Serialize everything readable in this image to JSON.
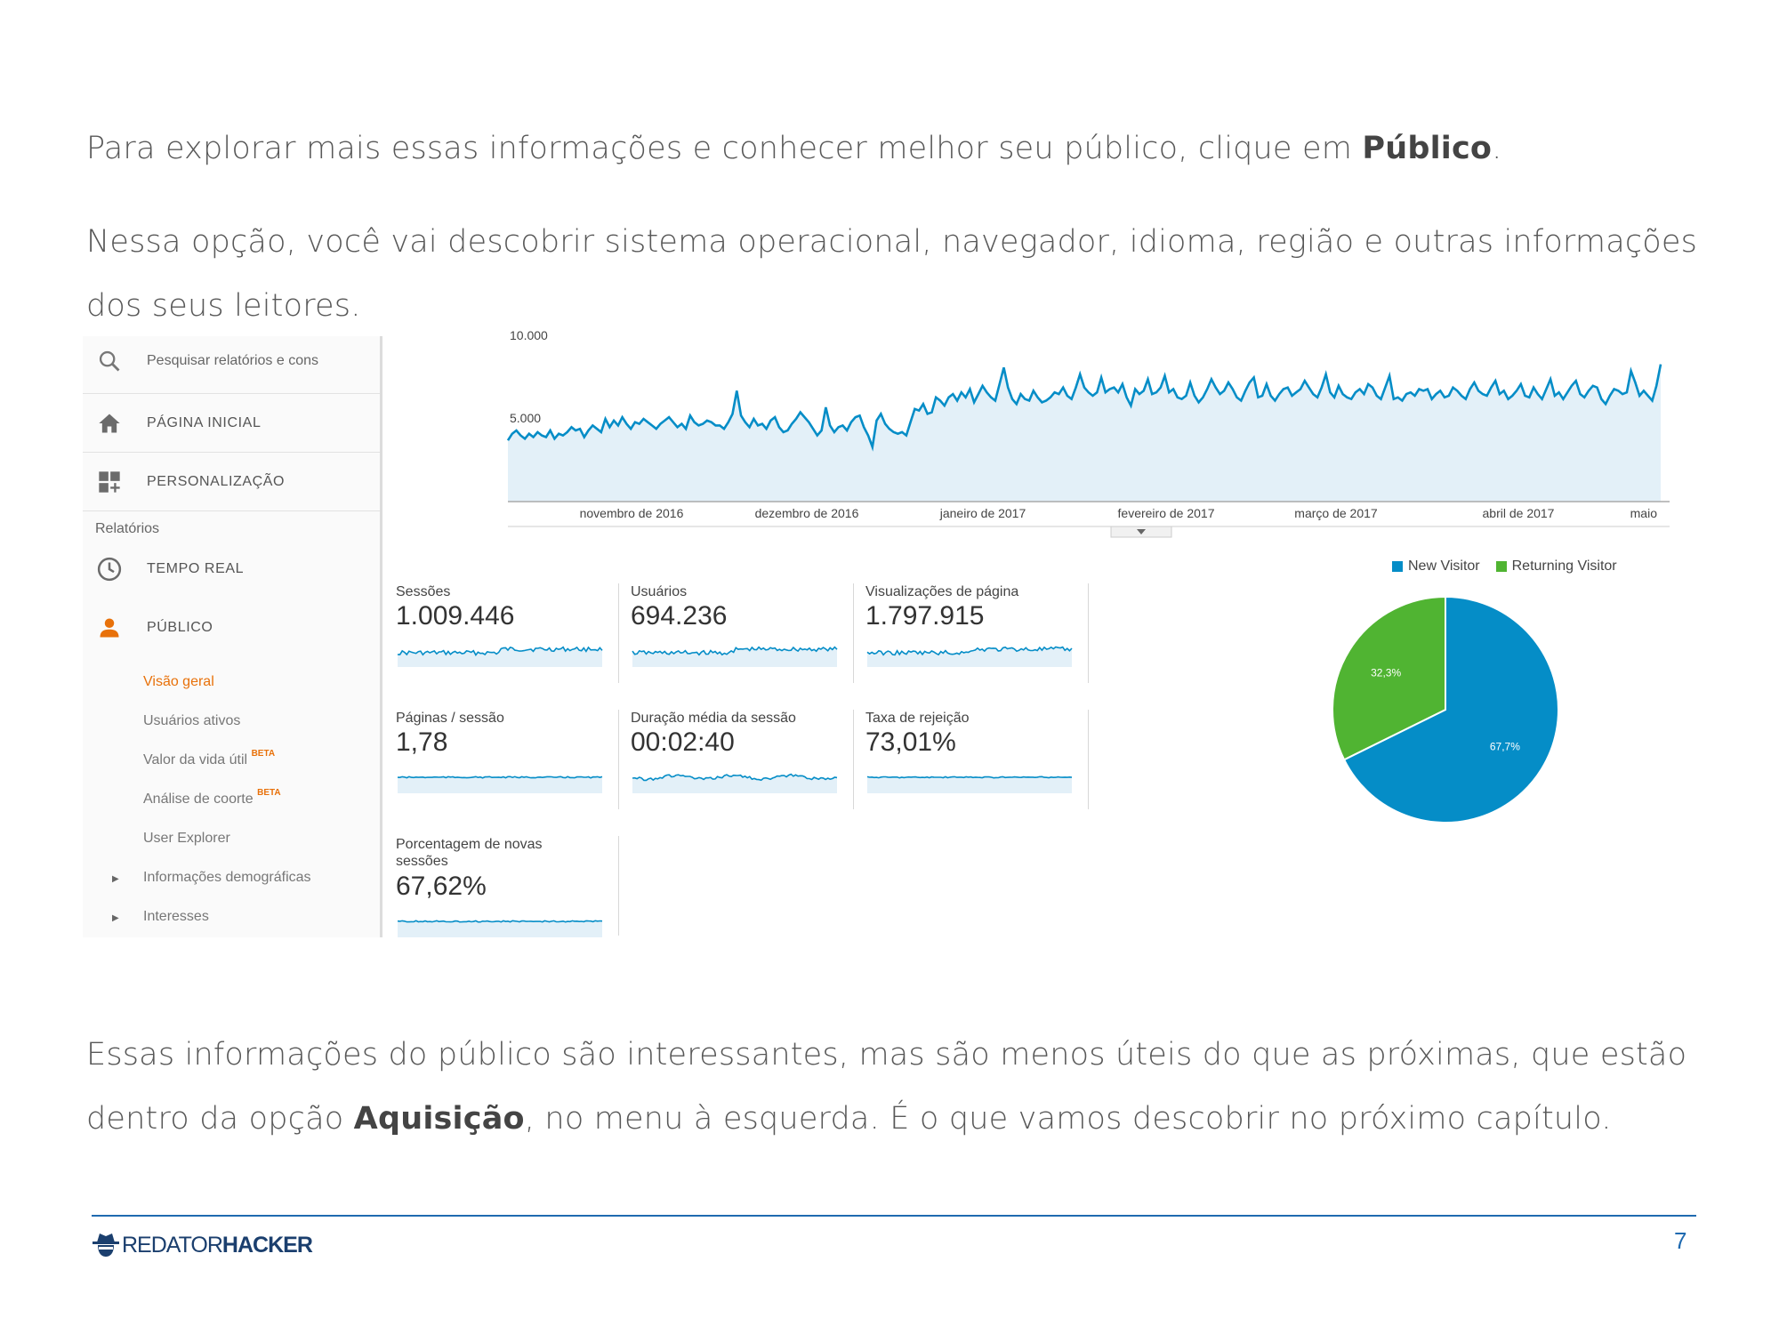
{
  "text": {
    "p1_prefix": "Para explorar mais essas informações e conhecer melhor seu público, clique em ",
    "p1_bold": "Público",
    "p1_suffix": ".",
    "p2": "Nessa opção, você vai descobrir sistema operacional, navegador, idioma, região e outras informações dos seus leitores.",
    "p3_prefix": "Essas informações do público são interessantes, mas são menos úteis do que as próximas, que estão dentro da opção ",
    "p3_bold": "Aquisição",
    "p3_suffix": ", no menu à esquerda. É o que vamos descobrir no próximo capítulo."
  },
  "sidebar": {
    "search_placeholder": "Pesquisar relatórios e cons",
    "home": "PÁGINA INICIAL",
    "custom": "PERSONALIZAÇÃO",
    "reports_heading": "Relatórios",
    "realtime": "TEMPO REAL",
    "audience": "PÚBLICO",
    "sub_items": {
      "overview": "Visão geral",
      "active_users": "Usuários ativos",
      "lifetime_value": "Valor da vida útil",
      "cohort": "Análise de coorte",
      "user_explorer": "User Explorer",
      "demographics": "Informações demográficas",
      "interests": "Interesses"
    },
    "beta": "BETA",
    "accent_color": "#e8710a"
  },
  "chart_data": [
    {
      "type": "area",
      "ylim": [
        0,
        10000
      ],
      "y_ticks": [
        "10.000",
        "5.000"
      ],
      "x_ticks": [
        "novembro de 2016",
        "dezembro de 2016",
        "janeiro de 2017",
        "fevereiro de 2017",
        "março de 2017",
        "abril de 2017",
        "maio"
      ],
      "color": "#058dc7",
      "fill": "#e3f0f8",
      "values": [
        3700,
        4100,
        4300,
        4000,
        3800,
        4100,
        3900,
        4200,
        4000,
        3900,
        4300,
        3800,
        4100,
        4000,
        4200,
        4500,
        4300,
        4400,
        3900,
        4300,
        4600,
        4400,
        4200,
        5000,
        4500,
        4900,
        4600,
        5100,
        4700,
        4400,
        4800,
        4700,
        5000,
        4800,
        4600,
        4400,
        4700,
        4900,
        5100,
        4800,
        4500,
        4700,
        4400,
        5200,
        4800,
        4600,
        4700,
        4900,
        4800,
        4600,
        4600,
        4400,
        4800,
        5300,
        6700,
        5200,
        4800,
        4500,
        5000,
        4600,
        4700,
        4400,
        4900,
        5100,
        4500,
        4200,
        4300,
        4700,
        5000,
        5400,
        5100,
        4800,
        4400,
        4000,
        4300,
        5700,
        4600,
        4200,
        4500,
        4600,
        4300,
        4800,
        5100,
        5200,
        4500,
        4000,
        3300,
        4900,
        5300,
        4700,
        4400,
        4200,
        4100,
        4200,
        4000,
        4800,
        5600,
        5500,
        5900,
        5300,
        5400,
        6300,
        6100,
        5800,
        6300,
        6500,
        6100,
        6600,
        6300,
        6800,
        6000,
        6500,
        7000,
        6600,
        6300,
        6100,
        7100,
        8100,
        6900,
        6200,
        5900,
        6500,
        6200,
        6100,
        6700,
        6300,
        6000,
        6100,
        6300,
        6600,
        6500,
        6900,
        6400,
        6200,
        6900,
        7700,
        6900,
        6600,
        6400,
        6600,
        7500,
        6600,
        6800,
        6900,
        6600,
        7100,
        6300,
        5800,
        6800,
        6500,
        6700,
        7400,
        6500,
        6600,
        6900,
        7600,
        6600,
        6800,
        6300,
        6200,
        6400,
        7200,
        6400,
        6000,
        6300,
        6800,
        7400,
        6900,
        6500,
        6700,
        7200,
        6800,
        6300,
        6100,
        6700,
        7200,
        7500,
        6300,
        6400,
        7100,
        6400,
        6100,
        6500,
        6800,
        6900,
        6400,
        6600,
        6800,
        7300,
        6900,
        6500,
        6300,
        6900,
        7700,
        6600,
        6300,
        7000,
        6500,
        6300,
        6200,
        6600,
        6800,
        6500,
        7100,
        6900,
        6400,
        6200,
        6900,
        7600,
        6200,
        6300,
        6100,
        6500,
        6600,
        6400,
        6800,
        6700,
        6800,
        6200,
        6500,
        6700,
        6300,
        6400,
        6900,
        6700,
        6400,
        6200,
        6800,
        7200,
        6700,
        6500,
        6400,
        6900,
        7300,
        6500,
        6700,
        6200,
        6400,
        6700,
        7100,
        6400,
        6300,
        6900,
        6500,
        6200,
        6800,
        7400,
        6400,
        6600,
        6200,
        6600,
        7000,
        7300,
        6500,
        6300,
        6700,
        7000,
        6900,
        6200,
        5900,
        6400,
        6800,
        6700,
        6500,
        6600,
        7900,
        7200,
        6400,
        6700,
        6400,
        6100,
        7000,
        8300
      ]
    },
    {
      "type": "pie",
      "series": [
        {
          "name": "New Visitor",
          "value": 67.7,
          "label": "67,7%",
          "color": "#058dc7"
        },
        {
          "name": "Returning Visitor",
          "value": 32.3,
          "label": "32,3%",
          "color": "#50b432"
        }
      ]
    }
  ],
  "metrics": [
    {
      "label": "Sessões",
      "value": "1.009.446",
      "style": "spiky"
    },
    {
      "label": "Usuários",
      "value": "694.236",
      "style": "spiky"
    },
    {
      "label": "Visualizações de página",
      "value": "1.797.915",
      "style": "spiky"
    },
    {
      "label": "Páginas / sessão",
      "value": "1,78",
      "style": "flat"
    },
    {
      "label": "Duração média da sessão",
      "value": "00:02:40",
      "style": "wavy"
    },
    {
      "label": "Taxa de rejeição",
      "value": "73,01%",
      "style": "flat"
    },
    {
      "label": "Porcentagem de novas sessões",
      "value": "67,62%",
      "style": "flat"
    }
  ],
  "footer": {
    "logo_part1": "REDATOR",
    "logo_part2": "HACKER",
    "page_number": "7",
    "line_color": "#1f6ab0"
  }
}
